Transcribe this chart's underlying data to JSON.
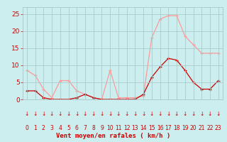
{
  "hours": [
    0,
    1,
    2,
    3,
    4,
    5,
    6,
    7,
    8,
    9,
    10,
    11,
    12,
    13,
    14,
    15,
    16,
    17,
    18,
    19,
    20,
    21,
    22,
    23
  ],
  "rafales": [
    8.5,
    7.0,
    3.0,
    0.5,
    5.5,
    5.5,
    2.5,
    1.5,
    0.5,
    0.0,
    8.5,
    0.5,
    0.5,
    0.5,
    1.0,
    18.0,
    23.5,
    24.5,
    24.5,
    18.5,
    16.0,
    13.5,
    13.5,
    13.5
  ],
  "moyen": [
    2.5,
    2.5,
    0.5,
    0.0,
    0.0,
    0.0,
    0.5,
    1.5,
    0.5,
    0.0,
    0.0,
    0.0,
    0.0,
    0.0,
    1.5,
    6.5,
    9.5,
    12.0,
    11.5,
    8.5,
    5.0,
    3.0,
    3.0,
    5.5
  ],
  "line_color_rafales": "#FF9999",
  "line_color_moyen": "#CC0000",
  "bg_color": "#CCEEEE",
  "grid_color": "#AACCCC",
  "tick_color": "#CC0000",
  "xlabel": "Vent moyen/en rafales ( km/h )",
  "ylim": [
    0,
    27
  ],
  "yticks": [
    0,
    5,
    10,
    15,
    20,
    25
  ],
  "xlim": [
    -0.5,
    23.5
  ],
  "arrow_char": "↓"
}
